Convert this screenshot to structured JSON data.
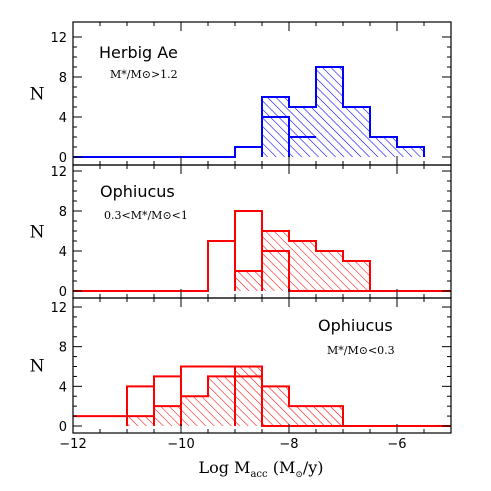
{
  "chart_data": {
    "type": "histogram",
    "xlabel": "Log Ṁacc (M⊙/y)",
    "xlim": [
      -12,
      -5
    ],
    "x_ticks": [
      -12,
      -10,
      -8,
      -6
    ],
    "ylim": [
      0,
      13
    ],
    "y_ticks": [
      0,
      4,
      8,
      12
    ],
    "ylabel": "N",
    "panels": [
      {
        "title": "Herbig Ae",
        "subtitle": "M*/M⊙>1.2",
        "color": "#0000ff",
        "hatched_series": {
          "bins": [
            -8.5,
            -8.0,
            -7.5,
            -7.0,
            -6.5,
            -6.0,
            -5.5
          ],
          "values": [
            6,
            5,
            9,
            5,
            2,
            1
          ]
        },
        "open_series": {
          "bins": [
            -12.0,
            -9.0,
            -8.5,
            -8.0,
            -7.5
          ],
          "values": [
            0,
            1,
            4,
            2
          ]
        }
      },
      {
        "title": "Ophiucus",
        "subtitle": "0.3<M*/M⊙<1",
        "color": "#ff0000",
        "hatched_series": {
          "bins": [
            -9.0,
            -8.5,
            -8.0,
            -7.5,
            -7.0,
            -6.5
          ],
          "values": [
            2,
            6,
            5,
            4,
            3
          ]
        },
        "open_series": {
          "bins": [
            -12.0,
            -9.5,
            -9.0,
            -8.5,
            -8.0,
            -5.0
          ],
          "values": [
            0,
            5,
            8,
            4,
            0
          ]
        }
      },
      {
        "title": "Ophiucus",
        "subtitle": "M*/M⊙<0.3",
        "color": "#ff0000",
        "hatched_series": {
          "bins": [
            -11.0,
            -10.5,
            -10.0,
            -9.5,
            -9.0,
            -8.5,
            -8.0,
            -7.5,
            -7.0
          ],
          "values": [
            1,
            2,
            3,
            5,
            6,
            4,
            2,
            2
          ]
        },
        "open_series": {
          "bins": [
            -12.0,
            -11.0,
            -10.5,
            -10.0,
            -9.0,
            -8.5,
            -5.0
          ],
          "values": [
            1,
            4,
            5,
            6,
            5,
            0
          ]
        }
      }
    ]
  }
}
